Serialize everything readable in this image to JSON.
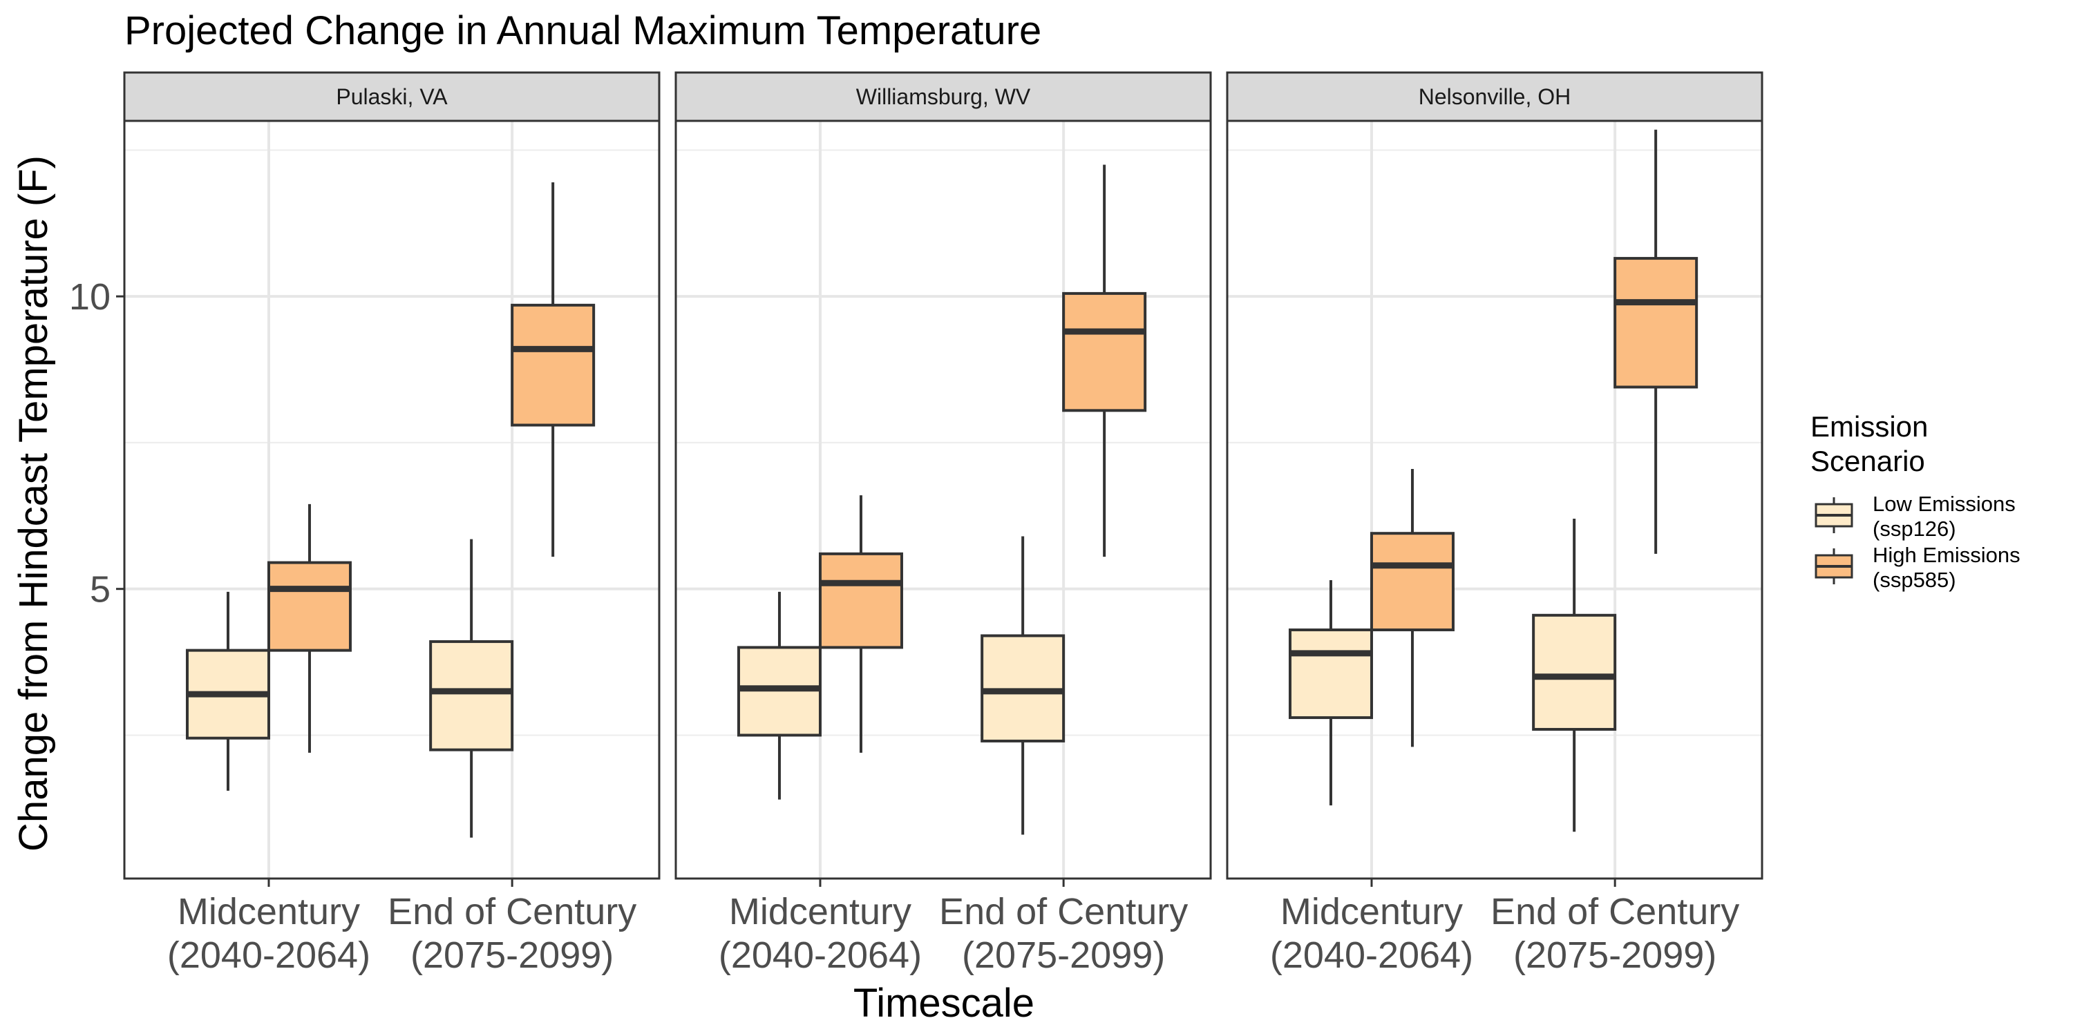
{
  "chart_data": {
    "type": "box",
    "title": "Projected Change in Annual Maximum Temperature",
    "xlabel": "Timescale",
    "ylabel": "Change from Hindcast Temperature (F)",
    "ylim": [
      0.05,
      13.0
    ],
    "y_ticks": [
      5,
      10
    ],
    "y_minor_ticks": [
      2.5,
      7.5,
      12.5
    ],
    "grid": true,
    "categories": [
      [
        "Midcentury",
        "(2040-2064)"
      ],
      [
        "End of Century",
        "(2075-2099)"
      ]
    ],
    "legend": {
      "title": [
        "Emission",
        "Scenario"
      ],
      "placement": "right",
      "entries": [
        {
          "label": [
            "Low Emissions",
            "(ssp126)"
          ],
          "color": "#feebc9"
        },
        {
          "label": [
            "High Emissions",
            "(ssp585)"
          ],
          "color": "#fbbd82"
        }
      ]
    },
    "series_names": [
      "Low Emissions (ssp126)",
      "High Emissions (ssp585)"
    ],
    "panels": [
      {
        "label": "Pulaski, VA",
        "boxes": [
          [
            {
              "min": 1.55,
              "q1": 2.45,
              "median": 3.2,
              "q3": 3.95,
              "max": 4.95
            },
            {
              "min": 2.2,
              "q1": 3.95,
              "median": 5.0,
              "q3": 5.45,
              "max": 6.45
            }
          ],
          [
            {
              "min": 0.75,
              "q1": 2.25,
              "median": 3.25,
              "q3": 4.1,
              "max": 5.85
            },
            {
              "min": 5.55,
              "q1": 7.8,
              "median": 9.1,
              "q3": 9.85,
              "max": 11.95
            }
          ]
        ]
      },
      {
        "label": "Williamsburg, WV",
        "boxes": [
          [
            {
              "min": 1.4,
              "q1": 2.5,
              "median": 3.3,
              "q3": 4.0,
              "max": 4.95
            },
            {
              "min": 2.2,
              "q1": 4.0,
              "median": 5.1,
              "q3": 5.6,
              "max": 6.6
            }
          ],
          [
            {
              "min": 0.8,
              "q1": 2.4,
              "median": 3.25,
              "q3": 4.2,
              "max": 5.9
            },
            {
              "min": 5.55,
              "q1": 8.05,
              "median": 9.4,
              "q3": 10.05,
              "max": 12.25
            }
          ]
        ]
      },
      {
        "label": "Nelsonville, OH",
        "boxes": [
          [
            {
              "min": 1.3,
              "q1": 2.8,
              "median": 3.9,
              "q3": 4.3,
              "max": 5.15
            },
            {
              "min": 2.3,
              "q1": 4.3,
              "median": 5.4,
              "q3": 5.95,
              "max": 7.05
            }
          ],
          [
            {
              "min": 0.85,
              "q1": 2.6,
              "median": 3.5,
              "q3": 4.55,
              "max": 6.2
            },
            {
              "min": 5.6,
              "q1": 8.45,
              "median": 9.9,
              "q3": 10.65,
              "max": 12.85
            }
          ]
        ]
      }
    ]
  }
}
